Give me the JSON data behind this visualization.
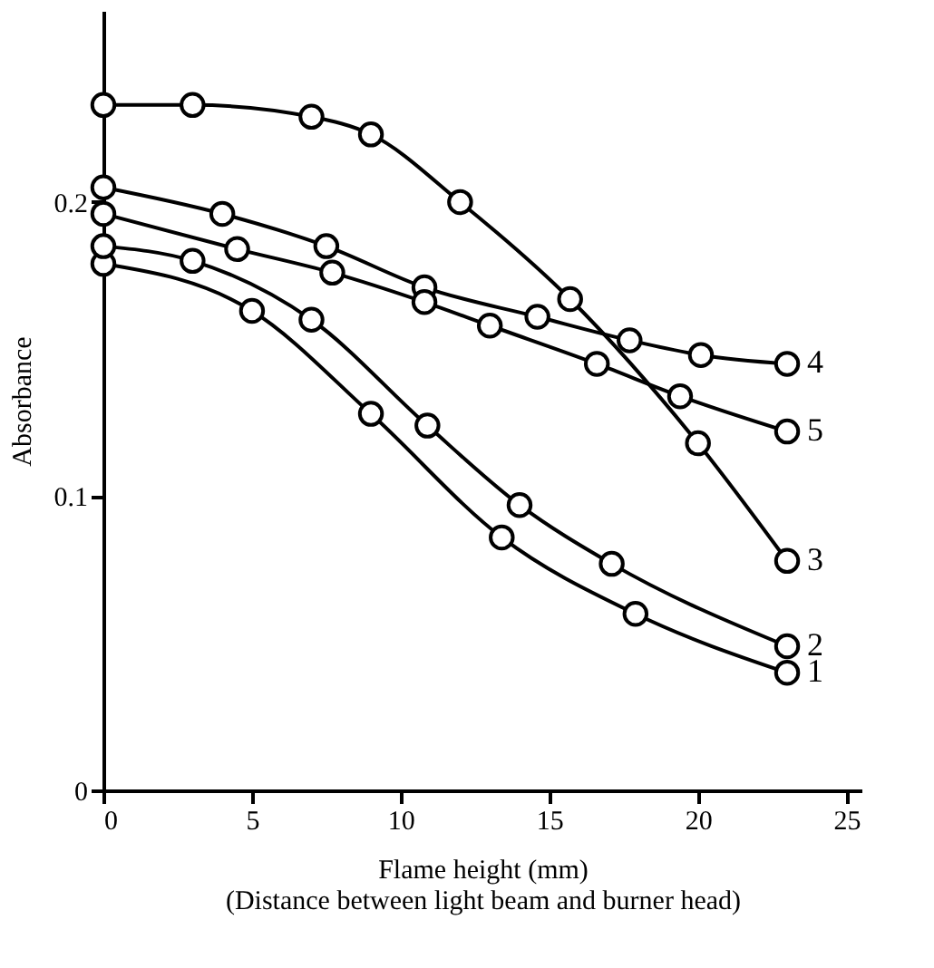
{
  "chart_data": {
    "type": "line",
    "xlabel": "Flame height (mm)\n(Distance between light beam and burner head)",
    "ylabel": "Absorbance",
    "xlim": [
      0,
      25.5
    ],
    "xticks": [
      0,
      5,
      10,
      15,
      20,
      25
    ],
    "ylim": [
      0,
      0.265
    ],
    "yticks": [
      0,
      0.1,
      0.2
    ],
    "marker": "circle",
    "line_style": "solid",
    "grid": false,
    "legend": false,
    "series": [
      {
        "name": "1",
        "color": "#000000",
        "x": [
          0,
          5,
          9,
          13.4,
          17.9,
          23
        ],
        "values": [
          0.179,
          0.163,
          0.128,
          0.086,
          0.06,
          0.04
        ]
      },
      {
        "name": "2",
        "color": "#000000",
        "x": [
          0,
          3,
          7,
          10.9,
          14,
          17.1,
          23
        ],
        "values": [
          0.185,
          0.18,
          0.16,
          0.124,
          0.097,
          0.077,
          0.049
        ]
      },
      {
        "name": "3",
        "color": "#000000",
        "x": [
          0,
          3,
          7,
          9,
          12,
          15.7,
          20,
          23
        ],
        "values": [
          0.233,
          0.233,
          0.229,
          0.223,
          0.2,
          0.167,
          0.118,
          0.078
        ]
      },
      {
        "name": "4",
        "color": "#000000",
        "x": [
          0,
          4,
          7.5,
          10.8,
          14.6,
          17.7,
          20.1,
          23
        ],
        "values": [
          0.205,
          0.196,
          0.185,
          0.171,
          0.161,
          0.153,
          0.148,
          0.145
        ]
      },
      {
        "name": "5",
        "color": "#000000",
        "x": [
          0,
          4.5,
          7.7,
          10.8,
          13,
          16.6,
          19.4,
          23
        ],
        "values": [
          0.196,
          0.184,
          0.176,
          0.166,
          0.158,
          0.145,
          0.134,
          0.122
        ]
      }
    ]
  }
}
